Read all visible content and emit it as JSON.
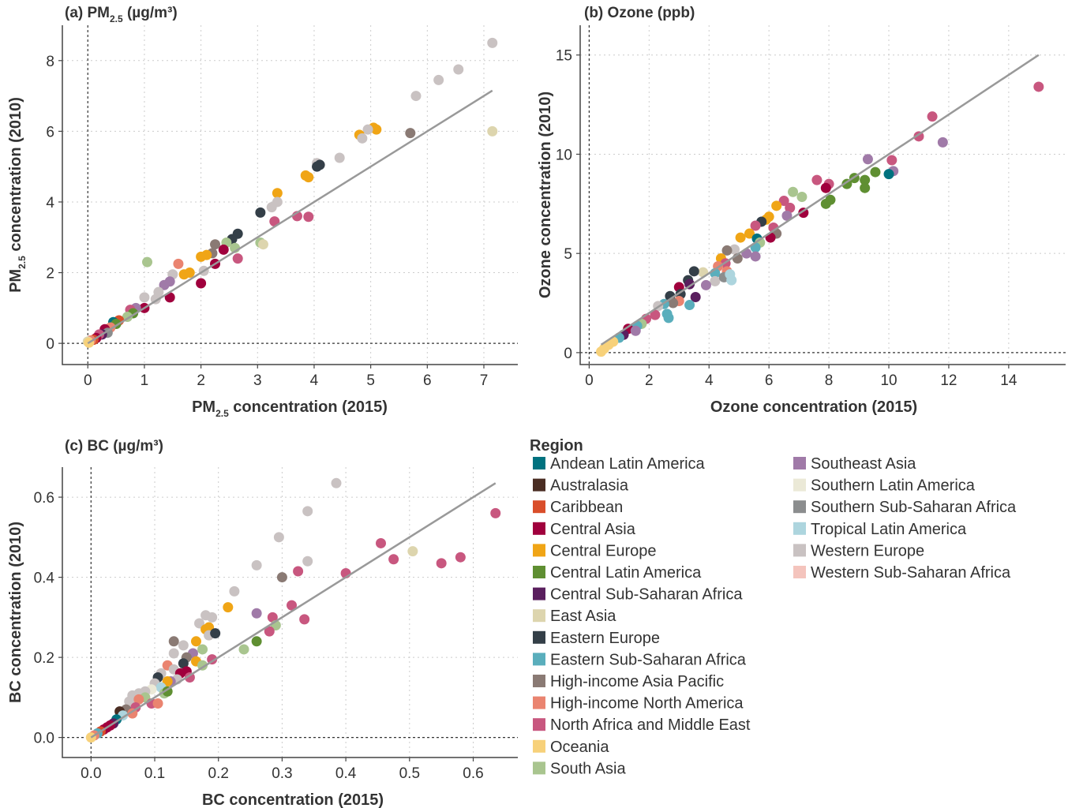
{
  "legend": {
    "title": "Region",
    "items": [
      {
        "name": "Andean Latin America",
        "color": "#00727f"
      },
      {
        "name": "Australasia",
        "color": "#4a2d23"
      },
      {
        "name": "Caribbean",
        "color": "#d94e2a"
      },
      {
        "name": "Central Asia",
        "color": "#a0003d"
      },
      {
        "name": "Central Europe",
        "color": "#f0a516"
      },
      {
        "name": "Central Latin America",
        "color": "#5f8f32"
      },
      {
        "name": "Central Sub-Saharan Africa",
        "color": "#5a1f5e"
      },
      {
        "name": "East Asia",
        "color": "#ddd5ae"
      },
      {
        "name": "Eastern Europe",
        "color": "#343f48"
      },
      {
        "name": "Eastern Sub-Saharan Africa",
        "color": "#5aaebc"
      },
      {
        "name": "High-income Asia Pacific",
        "color": "#8a7a74"
      },
      {
        "name": "High-income North America",
        "color": "#ea8470"
      },
      {
        "name": "North Africa and Middle East",
        "color": "#c8577f"
      },
      {
        "name": "Oceania",
        "color": "#f7d17a"
      },
      {
        "name": "South Asia",
        "color": "#a9c58f"
      },
      {
        "name": "Southeast Asia",
        "color": "#a07aa8"
      },
      {
        "name": "Southern Latin America",
        "color": "#ebe9d7"
      },
      {
        "name": "Southern Sub-Saharan Africa",
        "color": "#8b8d8e"
      },
      {
        "name": "Tropical Latin America",
        "color": "#add5de"
      },
      {
        "name": "Western Europe",
        "color": "#c9c2c2"
      },
      {
        "name": "Western Sub-Saharan Africa",
        "color": "#f4c4bd"
      }
    ]
  },
  "chart_data": [
    {
      "id": "pm",
      "type": "scatter",
      "title_prefix": "(a) PM",
      "title_sub": "2.5",
      "title_suffix": " (µg/m³)",
      "xlabel_prefix": "PM",
      "xlabel_sub": "2.5",
      "xlabel_suffix": " concentration (2015)",
      "ylabel_prefix": "PM",
      "ylabel_sub": "2.5",
      "ylabel_suffix": " concentration (2010)",
      "xlim": [
        -0.45,
        7.6
      ],
      "ylim": [
        -0.6,
        9.0
      ],
      "xticks": [
        0,
        1,
        2,
        3,
        4,
        5,
        6,
        7
      ],
      "xtick_labels": [
        "0",
        "1",
        "2",
        "3",
        "4",
        "5",
        "6",
        "7"
      ],
      "yticks": [
        0,
        2,
        4,
        6,
        8
      ],
      "ytick_labels": [
        "0",
        "2",
        "4",
        "6",
        "8"
      ],
      "reference_line": {
        "slope": 1.0,
        "x": [
          0,
          7.15
        ]
      },
      "points": [
        [
          7.15,
          8.5,
          19
        ],
        [
          6.55,
          7.75,
          19
        ],
        [
          6.2,
          7.45,
          19
        ],
        [
          5.8,
          7.0,
          19
        ],
        [
          7.15,
          6.0,
          7
        ],
        [
          5.7,
          5.95,
          10
        ],
        [
          5.05,
          6.1,
          4
        ],
        [
          5.1,
          6.05,
          4
        ],
        [
          4.95,
          6.05,
          19
        ],
        [
          4.8,
          5.9,
          4
        ],
        [
          4.85,
          5.8,
          19
        ],
        [
          4.45,
          5.25,
          19
        ],
        [
          4.05,
          5.1,
          19
        ],
        [
          4.1,
          5.05,
          8
        ],
        [
          4.05,
          5.0,
          8
        ],
        [
          3.35,
          4.25,
          4
        ],
        [
          3.85,
          4.75,
          4
        ],
        [
          3.9,
          4.7,
          4
        ],
        [
          3.35,
          4.0,
          19
        ],
        [
          3.25,
          3.85,
          19
        ],
        [
          3.05,
          3.7,
          8
        ],
        [
          3.3,
          3.45,
          12
        ],
        [
          3.7,
          3.6,
          12
        ],
        [
          3.9,
          3.58,
          12
        ],
        [
          3.05,
          2.85,
          14
        ],
        [
          3.1,
          2.8,
          7
        ],
        [
          2.65,
          3.1,
          8
        ],
        [
          2.55,
          2.95,
          8
        ],
        [
          2.6,
          2.7,
          14
        ],
        [
          2.45,
          2.85,
          14
        ],
        [
          2.65,
          2.4,
          12
        ],
        [
          2.4,
          2.65,
          3
        ],
        [
          2.25,
          2.8,
          10
        ],
        [
          2.2,
          2.55,
          10
        ],
        [
          2.1,
          2.5,
          4
        ],
        [
          2.0,
          2.45,
          4
        ],
        [
          2.25,
          2.25,
          3
        ],
        [
          2.05,
          2.05,
          19
        ],
        [
          2.0,
          1.7,
          3
        ],
        [
          1.8,
          2.0,
          4
        ],
        [
          1.7,
          1.95,
          4
        ],
        [
          1.6,
          2.25,
          11
        ],
        [
          1.5,
          1.95,
          19
        ],
        [
          1.45,
          1.75,
          15
        ],
        [
          1.35,
          1.65,
          15
        ],
        [
          1.05,
          2.3,
          14
        ],
        [
          1.45,
          1.3,
          3
        ],
        [
          1.25,
          1.45,
          19
        ],
        [
          1.0,
          1.3,
          19
        ],
        [
          1.2,
          1.25,
          19
        ],
        [
          1.0,
          1.0,
          3
        ],
        [
          0.85,
          1.0,
          15
        ],
        [
          0.75,
          0.95,
          12
        ],
        [
          0.8,
          0.85,
          5
        ],
        [
          0.7,
          0.75,
          14
        ],
        [
          0.55,
          0.65,
          2
        ],
        [
          0.45,
          0.6,
          0
        ],
        [
          0.5,
          0.55,
          5
        ],
        [
          0.4,
          0.45,
          11
        ],
        [
          0.3,
          0.4,
          3
        ],
        [
          0.35,
          0.3,
          17
        ],
        [
          0.25,
          0.25,
          6
        ],
        [
          0.2,
          0.25,
          12
        ],
        [
          0.15,
          0.15,
          3
        ],
        [
          0.1,
          0.1,
          2
        ],
        [
          0.05,
          0.08,
          11
        ],
        [
          0.0,
          0.05,
          7
        ],
        [
          0.02,
          0.02,
          13
        ]
      ]
    },
    {
      "id": "ozone",
      "type": "scatter",
      "title_prefix": "(b) Ozone (ppb)",
      "title_sub": "",
      "title_suffix": "",
      "xlabel_prefix": "Ozone concentration (2015)",
      "xlabel_sub": "",
      "xlabel_suffix": "",
      "ylabel_prefix": "Ozone concentration (2010)",
      "ylabel_sub": "",
      "ylabel_suffix": "",
      "xlim": [
        -0.3,
        15.9
      ],
      "ylim": [
        -0.6,
        16.5
      ],
      "xticks": [
        0,
        2,
        4,
        6,
        8,
        10,
        12,
        14
      ],
      "xtick_labels": [
        "0",
        "2",
        "4",
        "6",
        "8",
        "10",
        "12",
        "14"
      ],
      "yticks": [
        0,
        5,
        10,
        15
      ],
      "ytick_labels": [
        "0",
        "5",
        "10",
        "15"
      ],
      "reference_line": {
        "slope": 1.0,
        "x": [
          0.4,
          15.0
        ]
      },
      "points": [
        [
          15.0,
          13.4,
          12
        ],
        [
          11.45,
          11.9,
          12
        ],
        [
          11.0,
          10.9,
          12
        ],
        [
          11.8,
          10.6,
          15
        ],
        [
          10.1,
          9.7,
          12
        ],
        [
          9.3,
          9.75,
          15
        ],
        [
          10.15,
          9.15,
          15
        ],
        [
          10.0,
          9.0,
          0
        ],
        [
          9.55,
          9.1,
          5
        ],
        [
          9.2,
          8.7,
          5
        ],
        [
          8.85,
          8.8,
          5
        ],
        [
          9.2,
          8.3,
          5
        ],
        [
          8.6,
          8.5,
          5
        ],
        [
          8.0,
          8.5,
          12
        ],
        [
          7.9,
          8.3,
          3
        ],
        [
          7.6,
          8.7,
          12
        ],
        [
          8.05,
          7.7,
          5
        ],
        [
          7.9,
          7.5,
          5
        ],
        [
          6.8,
          8.1,
          14
        ],
        [
          7.1,
          7.85,
          14
        ],
        [
          6.5,
          7.65,
          12
        ],
        [
          6.7,
          7.3,
          12
        ],
        [
          6.25,
          7.4,
          4
        ],
        [
          6.0,
          6.85,
          4
        ],
        [
          5.9,
          6.7,
          4
        ],
        [
          5.75,
          6.6,
          8
        ],
        [
          5.55,
          6.4,
          12
        ],
        [
          6.15,
          6.3,
          12
        ],
        [
          6.6,
          6.9,
          15
        ],
        [
          7.15,
          7.05,
          3
        ],
        [
          5.35,
          6.0,
          4
        ],
        [
          5.05,
          5.8,
          4
        ],
        [
          5.6,
          5.75,
          0
        ],
        [
          5.7,
          5.55,
          14
        ],
        [
          6.25,
          6.0,
          10
        ],
        [
          6.05,
          5.8,
          3
        ],
        [
          5.55,
          5.3,
          9
        ],
        [
          5.25,
          5.0,
          15
        ],
        [
          5.55,
          4.85,
          15
        ],
        [
          4.85,
          5.2,
          19
        ],
        [
          4.6,
          5.15,
          10
        ],
        [
          4.4,
          4.75,
          4
        ],
        [
          4.55,
          4.5,
          12
        ],
        [
          4.3,
          4.35,
          11
        ],
        [
          4.95,
          4.75,
          10
        ],
        [
          4.2,
          4.0,
          9
        ],
        [
          4.6,
          4.1,
          11
        ],
        [
          3.8,
          4.05,
          7
        ],
        [
          3.5,
          4.1,
          8
        ],
        [
          3.3,
          3.65,
          8
        ],
        [
          3.35,
          3.45,
          6
        ],
        [
          3.0,
          3.3,
          3
        ],
        [
          3.05,
          2.95,
          8
        ],
        [
          2.7,
          2.85,
          8
        ],
        [
          3.55,
          2.8,
          6
        ],
        [
          3.0,
          2.6,
          11
        ],
        [
          2.8,
          2.5,
          10
        ],
        [
          2.5,
          2.45,
          9
        ],
        [
          2.3,
          2.35,
          19
        ],
        [
          3.35,
          2.4,
          9
        ],
        [
          2.6,
          1.95,
          9
        ],
        [
          2.65,
          1.75,
          9
        ],
        [
          2.2,
          1.9,
          12
        ],
        [
          1.9,
          1.7,
          12
        ],
        [
          1.75,
          1.45,
          14
        ],
        [
          1.6,
          1.35,
          9
        ],
        [
          1.3,
          1.2,
          3
        ],
        [
          1.55,
          1.1,
          15
        ],
        [
          1.15,
          0.9,
          6
        ],
        [
          1.0,
          0.75,
          9
        ],
        [
          0.8,
          0.55,
          13
        ],
        [
          0.65,
          0.4,
          13
        ],
        [
          0.5,
          0.2,
          13
        ],
        [
          0.4,
          0.05,
          13
        ],
        [
          4.2,
          3.6,
          19
        ],
        [
          4.5,
          3.8,
          17
        ],
        [
          3.9,
          3.4,
          15
        ],
        [
          4.75,
          3.65,
          18
        ],
        [
          4.7,
          3.95,
          18
        ]
      ]
    },
    {
      "id": "bc",
      "type": "scatter",
      "title_prefix": "(c) BC (µg/m³)",
      "title_sub": "",
      "title_suffix": "",
      "xlabel_prefix": "BC concentration (2015)",
      "xlabel_sub": "",
      "xlabel_suffix": "",
      "ylabel_prefix": "BC concentration (2010)",
      "ylabel_sub": "",
      "ylabel_suffix": "",
      "xlim": [
        -0.045,
        0.67
      ],
      "ylim": [
        -0.05,
        0.675
      ],
      "xticks": [
        0,
        0.1,
        0.2,
        0.3,
        0.4,
        0.5,
        0.6
      ],
      "xtick_labels": [
        "0.0",
        "0.1",
        "0.2",
        "0.3",
        "0.4",
        "0.5",
        "0.6"
      ],
      "yticks": [
        0,
        0.2,
        0.4,
        0.6
      ],
      "ytick_labels": [
        "0.0",
        "0.2",
        "0.4",
        "0.6"
      ],
      "reference_line": {
        "slope": 1.0,
        "x": [
          0.0,
          0.635
        ]
      },
      "points": [
        [
          0.385,
          0.635,
          19
        ],
        [
          0.34,
          0.565,
          19
        ],
        [
          0.295,
          0.5,
          19
        ],
        [
          0.26,
          0.43,
          19
        ],
        [
          0.34,
          0.44,
          19
        ],
        [
          0.3,
          0.4,
          10
        ],
        [
          0.325,
          0.415,
          12
        ],
        [
          0.4,
          0.41,
          12
        ],
        [
          0.455,
          0.485,
          12
        ],
        [
          0.475,
          0.445,
          12
        ],
        [
          0.505,
          0.465,
          7
        ],
        [
          0.55,
          0.435,
          12
        ],
        [
          0.58,
          0.45,
          12
        ],
        [
          0.635,
          0.56,
          12
        ],
        [
          0.225,
          0.365,
          19
        ],
        [
          0.215,
          0.325,
          4
        ],
        [
          0.26,
          0.31,
          15
        ],
        [
          0.285,
          0.3,
          12
        ],
        [
          0.315,
          0.33,
          12
        ],
        [
          0.335,
          0.295,
          12
        ],
        [
          0.29,
          0.28,
          14
        ],
        [
          0.28,
          0.265,
          12
        ],
        [
          0.26,
          0.24,
          5
        ],
        [
          0.24,
          0.22,
          14
        ],
        [
          0.18,
          0.305,
          19
        ],
        [
          0.19,
          0.3,
          19
        ],
        [
          0.17,
          0.285,
          19
        ],
        [
          0.185,
          0.275,
          4
        ],
        [
          0.18,
          0.27,
          4
        ],
        [
          0.185,
          0.255,
          19
        ],
        [
          0.195,
          0.26,
          8
        ],
        [
          0.165,
          0.24,
          4
        ],
        [
          0.13,
          0.24,
          10
        ],
        [
          0.145,
          0.23,
          19
        ],
        [
          0.175,
          0.22,
          14
        ],
        [
          0.16,
          0.21,
          15
        ],
        [
          0.13,
          0.21,
          19
        ],
        [
          0.15,
          0.2,
          10
        ],
        [
          0.19,
          0.195,
          12
        ],
        [
          0.165,
          0.19,
          4
        ],
        [
          0.145,
          0.185,
          8
        ],
        [
          0.175,
          0.18,
          14
        ],
        [
          0.12,
          0.18,
          11
        ],
        [
          0.13,
          0.17,
          19
        ],
        [
          0.15,
          0.165,
          3
        ],
        [
          0.14,
          0.16,
          3
        ],
        [
          0.11,
          0.16,
          19
        ],
        [
          0.105,
          0.15,
          8
        ],
        [
          0.135,
          0.145,
          19
        ],
        [
          0.125,
          0.14,
          15
        ],
        [
          0.12,
          0.14,
          4
        ],
        [
          0.1,
          0.135,
          19
        ],
        [
          0.11,
          0.125,
          18
        ],
        [
          0.095,
          0.12,
          16
        ],
        [
          0.085,
          0.115,
          19
        ],
        [
          0.075,
          0.11,
          19
        ],
        [
          0.065,
          0.105,
          19
        ],
        [
          0.06,
          0.09,
          19
        ],
        [
          0.085,
          0.1,
          14
        ],
        [
          0.075,
          0.095,
          11
        ],
        [
          0.095,
          0.085,
          12
        ],
        [
          0.07,
          0.075,
          12
        ],
        [
          0.055,
          0.07,
          10
        ],
        [
          0.045,
          0.065,
          1
        ],
        [
          0.05,
          0.055,
          18
        ],
        [
          0.04,
          0.045,
          0
        ],
        [
          0.035,
          0.035,
          6
        ],
        [
          0.03,
          0.03,
          3
        ],
        [
          0.025,
          0.025,
          3
        ],
        [
          0.02,
          0.02,
          3
        ],
        [
          0.015,
          0.015,
          2
        ],
        [
          0.01,
          0.01,
          9
        ],
        [
          0.005,
          0.005,
          11
        ],
        [
          0.0,
          0.0,
          13
        ],
        [
          0.105,
          0.085,
          11
        ],
        [
          0.115,
          0.11,
          14
        ],
        [
          0.12,
          0.115,
          5
        ],
        [
          0.155,
          0.15,
          12
        ],
        [
          0.065,
          0.06,
          11
        ]
      ]
    }
  ]
}
